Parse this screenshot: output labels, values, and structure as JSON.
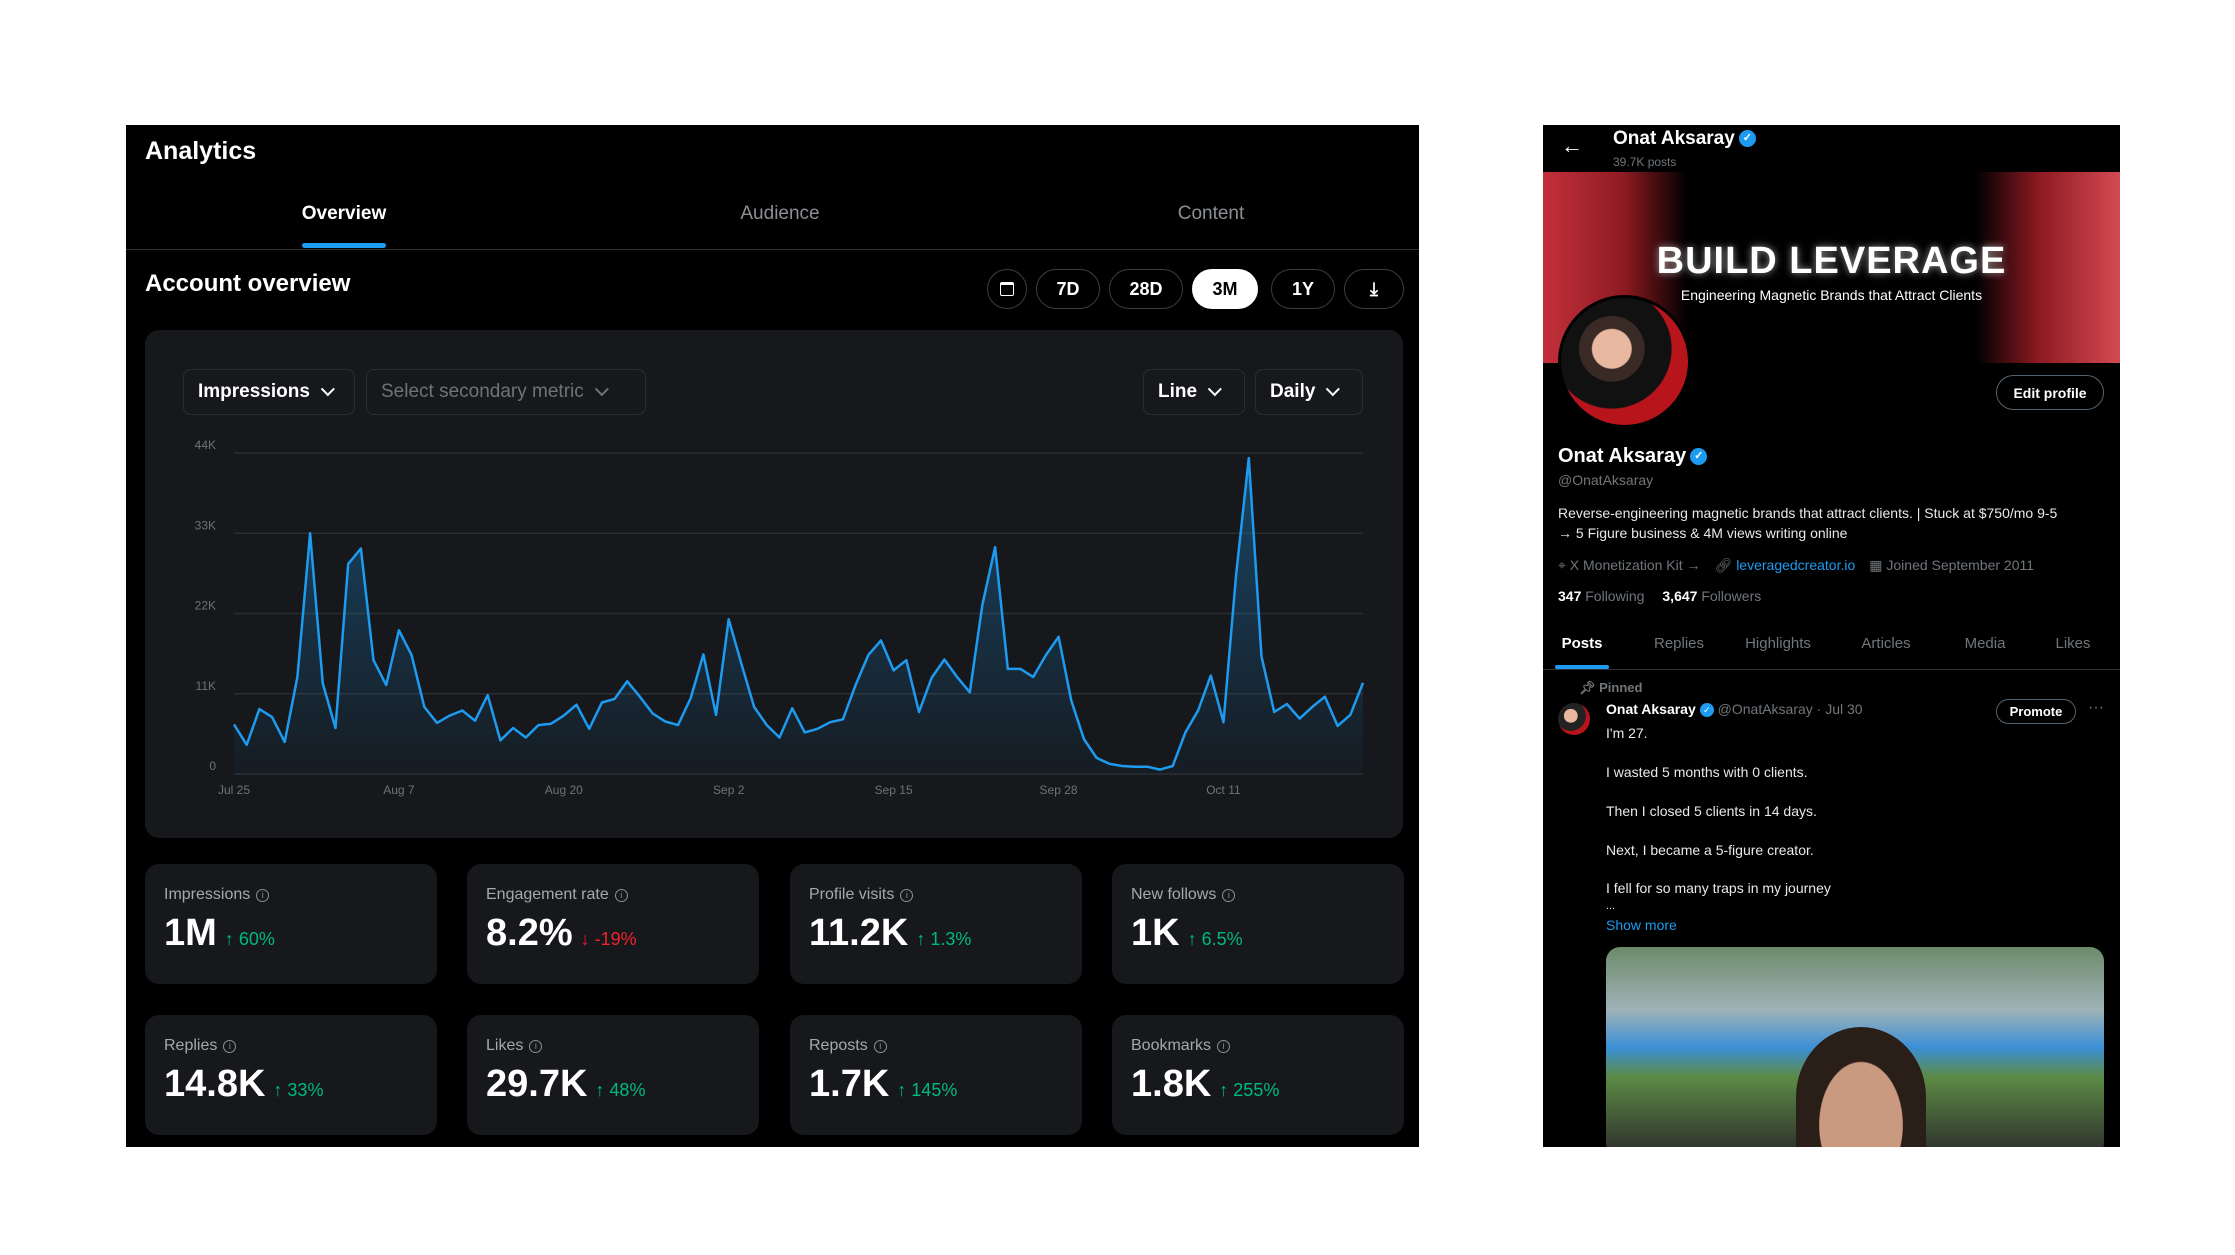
{
  "analytics": {
    "title": "Analytics",
    "tabs": [
      {
        "label": "Overview",
        "active": true
      },
      {
        "label": "Audience"
      },
      {
        "label": "Content"
      }
    ],
    "section_title": "Account overview",
    "ranges": [
      {
        "label": "7D"
      },
      {
        "label": "28D"
      },
      {
        "label": "3M",
        "selected": true
      },
      {
        "label": "1Y"
      }
    ],
    "controls": {
      "primary_metric": "Impressions",
      "secondary_metric_placeholder": "Select secondary metric",
      "chart_type": "Line",
      "interval": "Daily"
    },
    "stats": [
      {
        "label": "Impressions",
        "value": "1M",
        "change": "60%",
        "dir": "up"
      },
      {
        "label": "Engagement rate",
        "value": "8.2%",
        "change": "-19%",
        "dir": "down"
      },
      {
        "label": "Profile visits",
        "value": "11.2K",
        "change": "1.3%",
        "dir": "up"
      },
      {
        "label": "New follows",
        "value": "1K",
        "change": "6.5%",
        "dir": "up"
      },
      {
        "label": "Replies",
        "value": "14.8K",
        "change": "33%",
        "dir": "up"
      },
      {
        "label": "Likes",
        "value": "29.7K",
        "change": "48%",
        "dir": "up"
      },
      {
        "label": "Reposts",
        "value": "1.7K",
        "change": "145%",
        "dir": "up"
      },
      {
        "label": "Bookmarks",
        "value": "1.8K",
        "change": "255%",
        "dir": "up"
      }
    ]
  },
  "chart_data": {
    "type": "area",
    "title": "Impressions",
    "xlabel": "",
    "ylabel": "",
    "ylim": [
      0,
      44
    ],
    "yticks": [
      "0",
      "11K",
      "22K",
      "33K",
      "44K"
    ],
    "xticks": [
      {
        "label": "Jul 25",
        "day": 0
      },
      {
        "label": "Aug 7",
        "day": 13
      },
      {
        "label": "Aug 20",
        "day": 26
      },
      {
        "label": "Sep 2",
        "day": 39
      },
      {
        "label": "Sep 15",
        "day": 52
      },
      {
        "label": "Sep 28",
        "day": 65
      },
      {
        "label": "Oct 11",
        "day": 78
      }
    ],
    "units": "thousands of impressions per day",
    "color": "#1d9bf0",
    "values": [
      6.8,
      4.0,
      8.9,
      7.8,
      4.4,
      13.3,
      33.0,
      12.4,
      6.3,
      28.8,
      30.9,
      15.6,
      12.2,
      19.7,
      16.3,
      9.2,
      7.0,
      8.0,
      8.7,
      7.3,
      10.8,
      4.6,
      6.3,
      5.0,
      6.7,
      6.9,
      8.0,
      9.5,
      6.2,
      9.8,
      10.3,
      12.7,
      10.6,
      8.3,
      7.2,
      6.7,
      10.4,
      16.4,
      8.1,
      21.2,
      15.1,
      9.2,
      6.7,
      5.0,
      9.0,
      5.7,
      6.2,
      7.1,
      7.5,
      12.2,
      16.3,
      18.3,
      14.2,
      15.6,
      8.5,
      13.2,
      15.7,
      13.3,
      11.2,
      23.2,
      31.1,
      14.4,
      14.4,
      13.3,
      16.3,
      18.8,
      10.1,
      4.8,
      2.2,
      1.4,
      1.1,
      1.0,
      1.0,
      0.6,
      1.1,
      5.7,
      8.7,
      13.5,
      7.1,
      27.3,
      43.3,
      16.1,
      8.5,
      9.6,
      7.6,
      9.2,
      10.6,
      6.6,
      8.1,
      12.5
    ]
  },
  "profile": {
    "header_name": "Onat Aksaray",
    "posts_count": "39.7K posts",
    "banner": {
      "headline": "BUILD LEVERAGE",
      "tagline": "Engineering Magnetic Brands that Attract Clients"
    },
    "edit_profile": "Edit profile",
    "name": "Onat Aksaray",
    "handle": "@OnatAksaray",
    "bio_line1": "Reverse-engineering magnetic brands that attract clients. | Stuck at $750/mo 9-5",
    "bio_line2": "→ 5 Figure business & 4M views writing online",
    "location": "X Monetization Kit →",
    "link": "leveragedcreator.io",
    "joined": "Joined September 2011",
    "following_count": "347",
    "following_label": "Following",
    "followers_count": "3,647",
    "followers_label": "Followers",
    "tabs": [
      "Posts",
      "Replies",
      "Highlights",
      "Articles",
      "Media",
      "Likes"
    ],
    "pinned_post": {
      "pinned_label": "Pinned",
      "author": "Onat Aksaray",
      "handle_date": "@OnatAksaray · Jul 30",
      "promote": "Promote",
      "lines": [
        "I'm 27.",
        "I wasted 5 months with 0 clients.",
        "Then I closed 5 clients in 14 days.",
        "Next, I became a 5-figure creator.",
        "I fell for so many traps in my journey",
        "..."
      ],
      "show_more": "Show more"
    }
  }
}
